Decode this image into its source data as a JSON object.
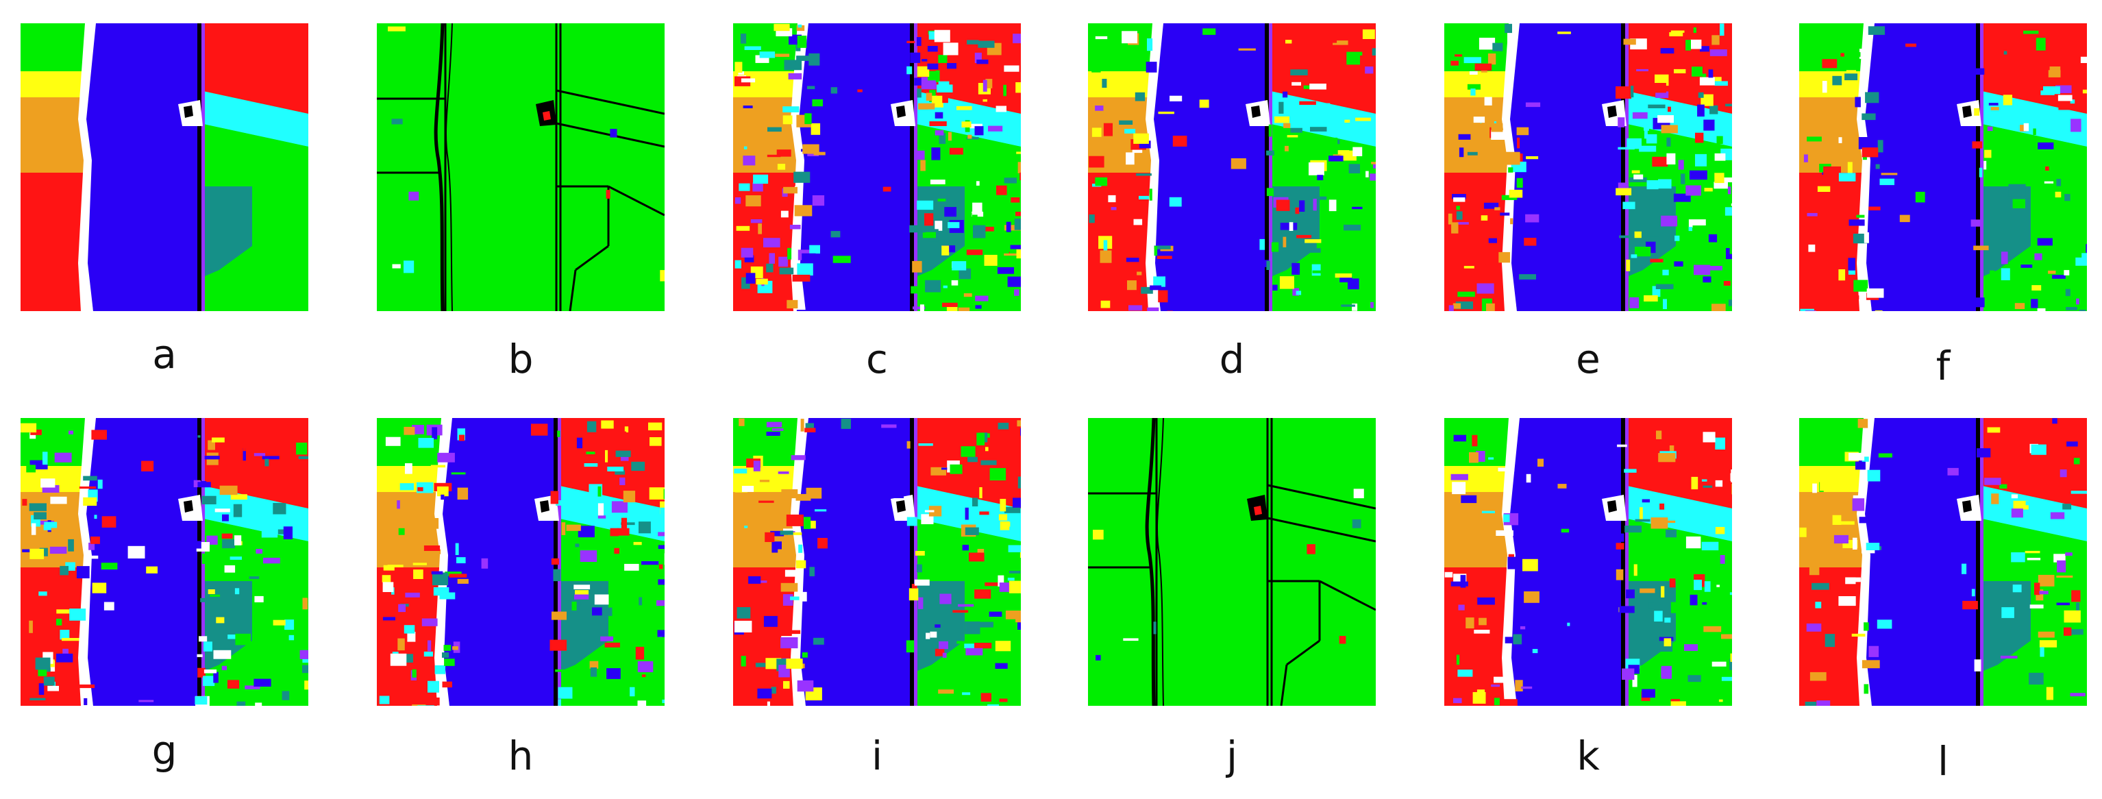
{
  "figure": {
    "palette": {
      "green": "#00ee00",
      "blue": "#2a00f5",
      "red": "#ff1414",
      "yellow": "#ffff10",
      "orange": "#eea020",
      "cyan": "#20ffff",
      "teal": "#159088",
      "white": "#ffffff",
      "black": "#000000",
      "purple": "#9933ff"
    },
    "panels": [
      {
        "id": "a",
        "label": "a",
        "kind": "reference",
        "noise": 0
      },
      {
        "id": "b",
        "label": "b",
        "kind": "mostly-green",
        "noise": 0.02
      },
      {
        "id": "c",
        "label": "c",
        "kind": "classified",
        "noise": 0.55
      },
      {
        "id": "d",
        "label": "d",
        "kind": "classified",
        "noise": 0.35
      },
      {
        "id": "e",
        "label": "e",
        "kind": "classified",
        "noise": 0.45
      },
      {
        "id": "f",
        "label": "f",
        "kind": "classified",
        "noise": 0.3
      },
      {
        "id": "g",
        "label": "g",
        "kind": "classified",
        "noise": 0.4
      },
      {
        "id": "h",
        "label": "h",
        "kind": "classified",
        "noise": 0.45
      },
      {
        "id": "i",
        "label": "i",
        "kind": "classified",
        "noise": 0.45
      },
      {
        "id": "j",
        "label": "j",
        "kind": "mostly-green",
        "noise": 0.03
      },
      {
        "id": "k",
        "label": "k",
        "kind": "classified",
        "noise": 0.35
      },
      {
        "id": "l",
        "label": "l",
        "kind": "classified",
        "noise": 0.25
      }
    ]
  }
}
